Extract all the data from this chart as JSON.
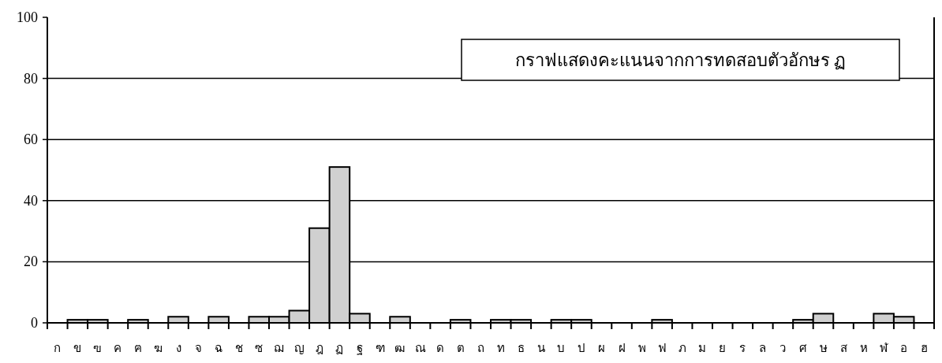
{
  "chart_data": {
    "type": "bar",
    "title": "กราฟแสดงคะแนนจากการทดสอบตัวอักษร ฏ",
    "categories": [
      "ก",
      "ข",
      "ฃ",
      "ค",
      "ฅ",
      "ฆ",
      "ง",
      "จ",
      "ฉ",
      "ช",
      "ซ",
      "ฌ",
      "ญ",
      "ฎ",
      "ฏ",
      "ฐ",
      "ฑ",
      "ฒ",
      "ณ",
      "ด",
      "ต",
      "ถ",
      "ท",
      "ธ",
      "น",
      "บ",
      "ป",
      "ผ",
      "ฝ",
      "พ",
      "ฟ",
      "ภ",
      "ม",
      "ย",
      "ร",
      "ล",
      "ว",
      "ศ",
      "ษ",
      "ส",
      "ห",
      "ฬ",
      "อ",
      "ฮ"
    ],
    "values": [
      0,
      1,
      1,
      0,
      1,
      0,
      2,
      0,
      2,
      0,
      2,
      2,
      4,
      31,
      51,
      3,
      0,
      2,
      0,
      0,
      1,
      0,
      1,
      1,
      0,
      1,
      1,
      0,
      0,
      0,
      1,
      0,
      0,
      0,
      0,
      0,
      0,
      1,
      3,
      0,
      0,
      3,
      2,
      0
    ],
    "color": "#d0d0d0",
    "ylim": [
      0,
      100
    ],
    "yticks": [
      0,
      20,
      40,
      60,
      80,
      100
    ],
    "grid": "y"
  }
}
